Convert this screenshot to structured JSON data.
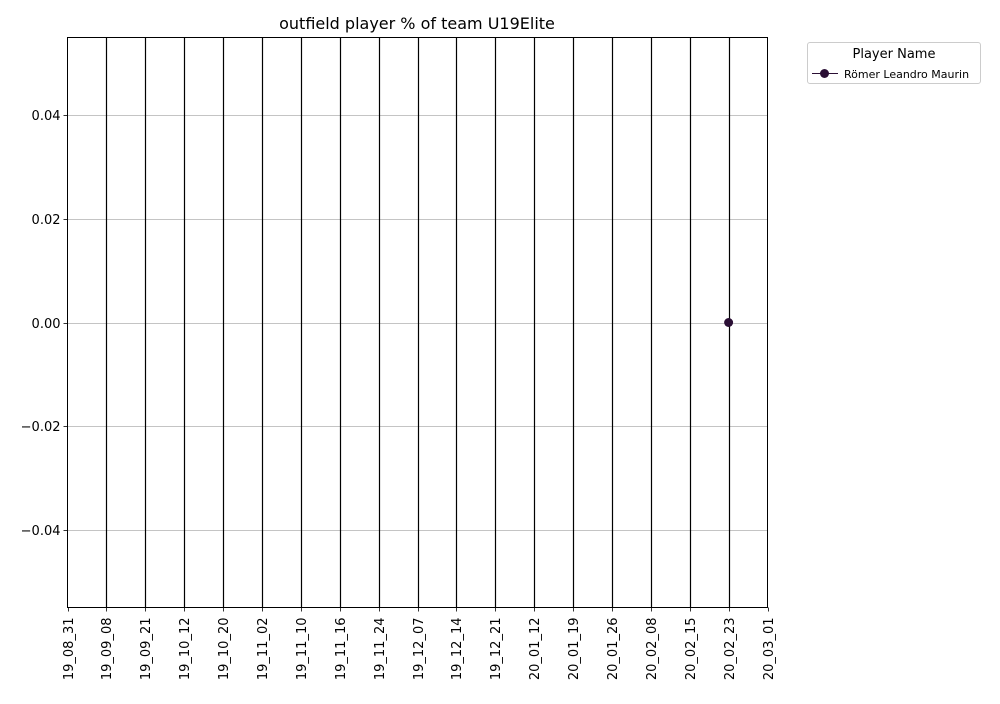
{
  "chart_data": {
    "type": "line",
    "title": "outfield player % of team U19Elite",
    "xlabel": "",
    "ylabel": "",
    "categories": [
      "19_08_31",
      "19_09_08",
      "19_09_21",
      "19_10_12",
      "19_10_20",
      "19_11_02",
      "19_11_10",
      "19_11_16",
      "19_11_24",
      "19_12_07",
      "19_12_14",
      "19_12_21",
      "20_01_12",
      "20_01_19",
      "20_01_26",
      "20_02_08",
      "20_02_15",
      "20_02_23",
      "20_03_01"
    ],
    "ylim": [
      -0.055,
      0.055
    ],
    "yticks": [
      -0.04,
      -0.02,
      0.0,
      0.02,
      0.04
    ],
    "ytick_labels": [
      "−0.04",
      "−0.02",
      "0.00",
      "0.02",
      "0.04"
    ],
    "grid": "y",
    "vertical_lines_at_each_category": true,
    "legend": {
      "title": "Player Name",
      "placement": "outside-top-right"
    },
    "series": [
      {
        "name": "Römer Leandro Maurin",
        "color": "#2b0f35",
        "points": [
          {
            "x": "20_02_23",
            "y": 0.0
          }
        ]
      }
    ]
  }
}
